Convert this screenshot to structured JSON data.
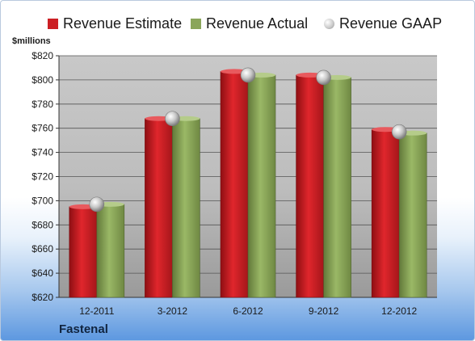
{
  "chart_data": {
    "type": "bar",
    "categories": [
      "12-2011",
      "3-2012",
      "6-2012",
      "9-2012",
      "12-2012"
    ],
    "series": [
      {
        "name": "Revenue Estimate",
        "values": [
          695,
          768,
          807,
          804,
          759
        ],
        "color": "#cc1f24"
      },
      {
        "name": "Revenue Actual",
        "values": [
          697,
          768,
          804,
          802,
          756
        ],
        "color": "#8aa55a"
      },
      {
        "name": "Revenue GAAP",
        "values": [
          697,
          768,
          804,
          802,
          757
        ],
        "color": "#c7c7c7",
        "marker": "circle"
      }
    ],
    "ylabel": "$millions",
    "ylim": [
      620,
      820
    ],
    "yticks": [
      620,
      640,
      660,
      680,
      700,
      720,
      740,
      760,
      780,
      800,
      820
    ],
    "ytick_labels": [
      "$620",
      "$640",
      "$660",
      "$680",
      "$700",
      "$720",
      "$740",
      "$760",
      "$780",
      "$800",
      "$820"
    ],
    "grid": true,
    "legend_position": "top",
    "company": "Fastenal",
    "plot_background": "#c0c0c0"
  }
}
